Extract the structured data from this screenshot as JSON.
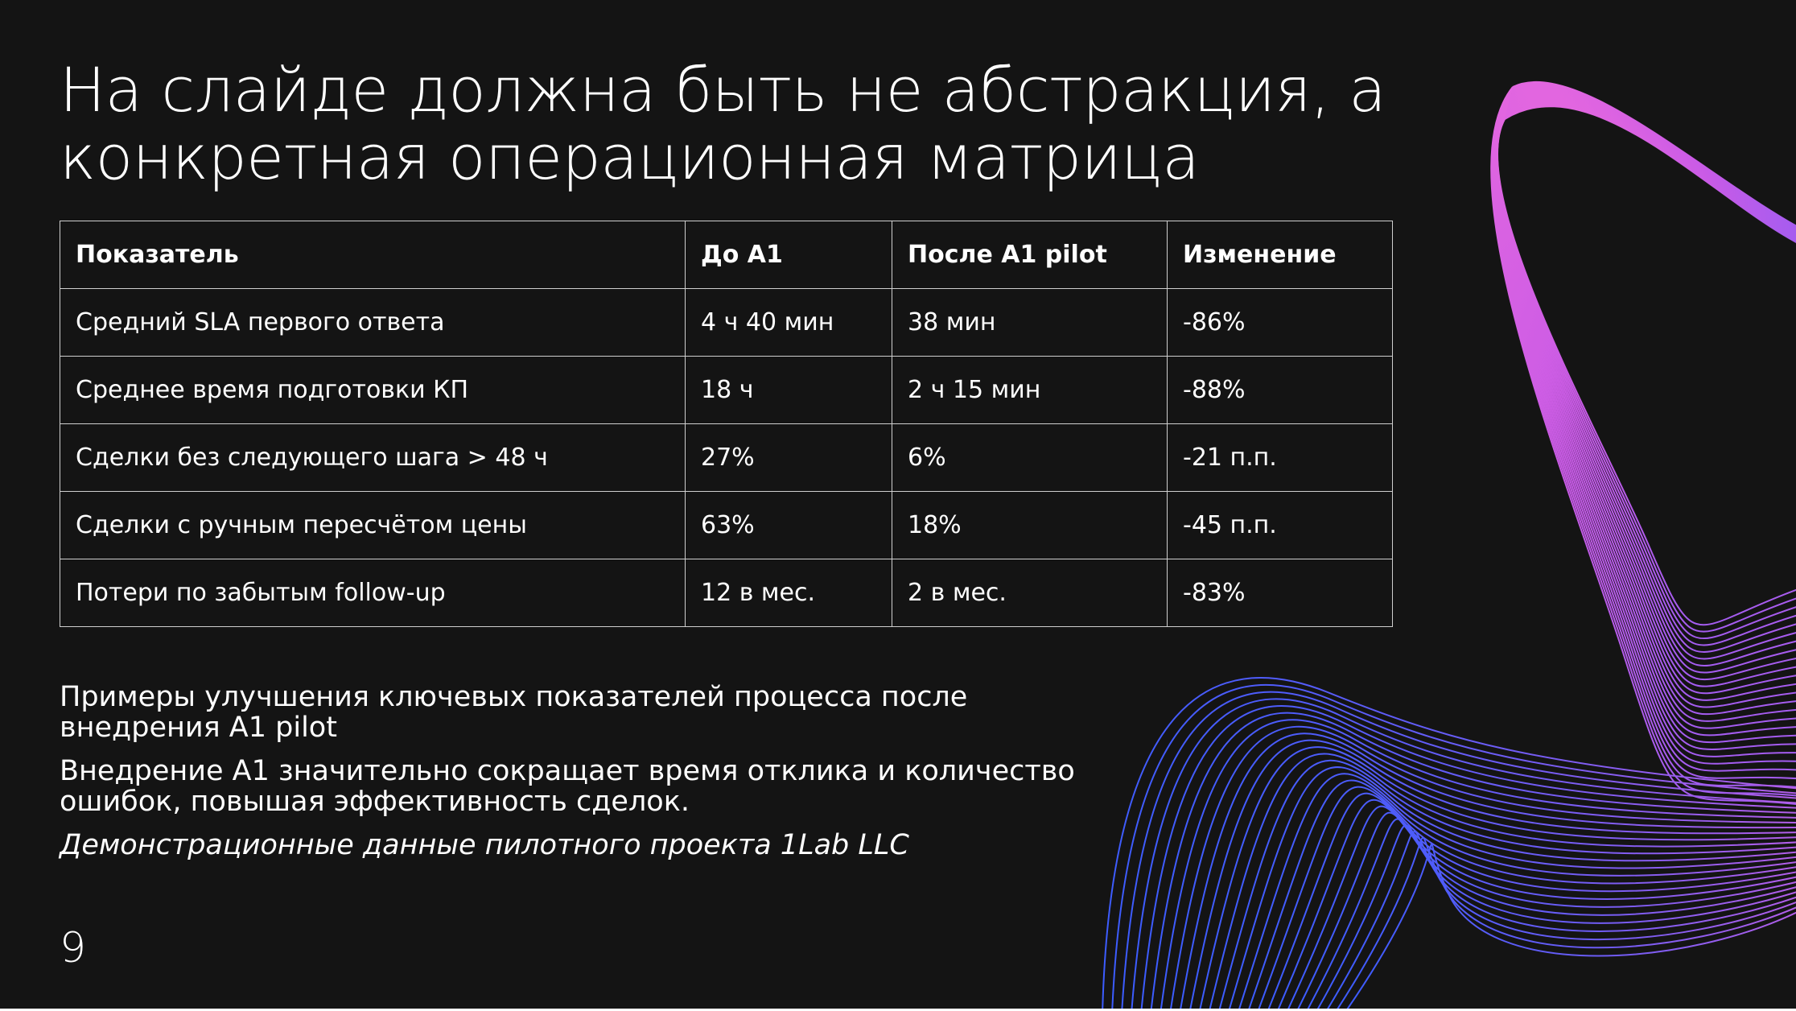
{
  "slide": {
    "title": "На слайде должна быть не абстракция, а конкретная операционная матрица",
    "page_number": "9",
    "background_color": "#141414",
    "accent_colors": [
      "#e266e0",
      "#a45cf0",
      "#3c5cff"
    ]
  },
  "table": {
    "headers": [
      "Показатель",
      "До A1",
      "После A1 pilot",
      "Изменение"
    ],
    "rows": [
      [
        "Средний SLA первого ответа",
        "4 ч 40 мин",
        "38 мин",
        "-86%"
      ],
      [
        "Среднее время подготовки КП",
        "18 ч",
        "2 ч 15 мин",
        "-88%"
      ],
      [
        "Сделки без следующего шага > 48 ч",
        "27%",
        "6%",
        "-21 п.п."
      ],
      [
        "Сделки с ручным пересчётом цены",
        "63%",
        "18%",
        "-45 п.п."
      ],
      [
        "Потери по забытым follow-up",
        "12 в мес.",
        "2 в мес.",
        "-83%"
      ]
    ]
  },
  "notes": {
    "summary": "Примеры улучшения ключевых показателей процесса после внедрения A1 pilot",
    "conclusion": "Внедрение A1 значительно сокращает время отклика и количество ошибок, повышая эффективность сделок.",
    "source": "Демонстрационные данные пилотного проекта 1Lab LLC"
  }
}
